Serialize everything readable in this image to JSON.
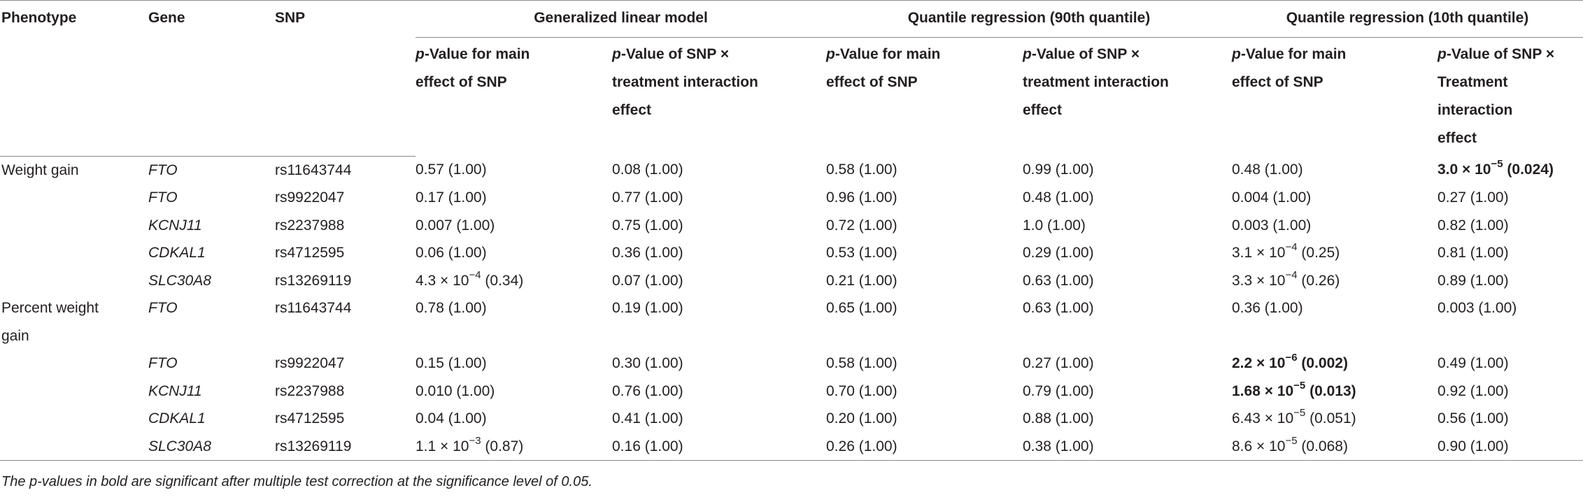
{
  "header": {
    "phenotype": "Phenotype",
    "gene": "Gene",
    "snp": "SNP",
    "groups": [
      "Generalized linear model",
      "Quantile regression (90th quantile)",
      "Quantile regression (10th quantile)"
    ],
    "sub": {
      "glm_main": {
        "p": "p",
        "rest": "-Value for main effect of SNP"
      },
      "glm_int": {
        "p": "p",
        "rest": "-Value of SNP × treatment interaction effect"
      },
      "q90_main": {
        "p": "p",
        "rest": "-Value for main effect of SNP"
      },
      "q90_int": {
        "p": "p",
        "rest": "-Value of SNP × treatment interaction effect"
      },
      "q10_main": {
        "p": "p",
        "rest": "-Value for main effect of SNP"
      },
      "q10_int": {
        "p": "p",
        "rest": "-Value of SNP × Treatment interaction effect"
      }
    }
  },
  "rows": [
    {
      "phenotype": "Weight gain",
      "gene": "FTO",
      "snp": "rs11643744",
      "glm_main": {
        "m": "0.57 (1.00)",
        "e": "",
        "s": ""
      },
      "glm_int": {
        "m": "0.08 (1.00)",
        "e": "",
        "s": ""
      },
      "q90_main": {
        "m": "0.58 (1.00)",
        "e": "",
        "s": ""
      },
      "q90_int": {
        "m": "0.99 (1.00)",
        "e": "",
        "s": ""
      },
      "q10_main": {
        "m": "0.48 (1.00)",
        "e": "",
        "s": ""
      },
      "q10_int": {
        "m": "3.0 × 10",
        "e": "−5",
        "s": " (0.024)",
        "bold": true
      }
    },
    {
      "phenotype": "",
      "gene": "FTO",
      "snp": "rs9922047",
      "glm_main": {
        "m": "0.17 (1.00)",
        "e": "",
        "s": ""
      },
      "glm_int": {
        "m": "0.77 (1.00)",
        "e": "",
        "s": ""
      },
      "q90_main": {
        "m": "0.96 (1.00)",
        "e": "",
        "s": ""
      },
      "q90_int": {
        "m": "0.48 (1.00)",
        "e": "",
        "s": ""
      },
      "q10_main": {
        "m": "0.004 (1.00)",
        "e": "",
        "s": ""
      },
      "q10_int": {
        "m": "0.27 (1.00)",
        "e": "",
        "s": ""
      }
    },
    {
      "phenotype": "",
      "gene": "KCNJ11",
      "snp": "rs2237988",
      "glm_main": {
        "m": "0.007 (1.00)",
        "e": "",
        "s": ""
      },
      "glm_int": {
        "m": "0.75 (1.00)",
        "e": "",
        "s": ""
      },
      "q90_main": {
        "m": "0.72 (1.00)",
        "e": "",
        "s": ""
      },
      "q90_int": {
        "m": "1.0 (1.00)",
        "e": "",
        "s": ""
      },
      "q10_main": {
        "m": "0.003 (1.00)",
        "e": "",
        "s": ""
      },
      "q10_int": {
        "m": "0.82 (1.00)",
        "e": "",
        "s": ""
      }
    },
    {
      "phenotype": "",
      "gene": "CDKAL1",
      "snp": "rs4712595",
      "glm_main": {
        "m": "0.06 (1.00)",
        "e": "",
        "s": ""
      },
      "glm_int": {
        "m": "0.36 (1.00)",
        "e": "",
        "s": ""
      },
      "q90_main": {
        "m": "0.53 (1.00)",
        "e": "",
        "s": ""
      },
      "q90_int": {
        "m": "0.29 (1.00)",
        "e": "",
        "s": ""
      },
      "q10_main": {
        "m": "3.1 × 10",
        "e": "−4",
        "s": " (0.25)"
      },
      "q10_int": {
        "m": "0.81 (1.00)",
        "e": "",
        "s": ""
      }
    },
    {
      "phenotype": "",
      "gene": "SLC30A8",
      "snp": "rs13269119",
      "glm_main": {
        "m": "4.3 × 10",
        "e": "−4",
        "s": " (0.34)"
      },
      "glm_int": {
        "m": "0.07 (1.00)",
        "e": "",
        "s": ""
      },
      "q90_main": {
        "m": "0.21 (1.00)",
        "e": "",
        "s": ""
      },
      "q90_int": {
        "m": "0.63 (1.00)",
        "e": "",
        "s": ""
      },
      "q10_main": {
        "m": "3.3 × 10",
        "e": "−4",
        "s": " (0.26)"
      },
      "q10_int": {
        "m": "0.89 (1.00)",
        "e": "",
        "s": ""
      }
    },
    {
      "phenotype": "Percent weight gain",
      "gene": "FTO",
      "snp": "rs11643744",
      "glm_main": {
        "m": "0.78 (1.00)",
        "e": "",
        "s": ""
      },
      "glm_int": {
        "m": "0.19 (1.00)",
        "e": "",
        "s": ""
      },
      "q90_main": {
        "m": "0.65 (1.00)",
        "e": "",
        "s": ""
      },
      "q90_int": {
        "m": "0.63 (1.00)",
        "e": "",
        "s": ""
      },
      "q10_main": {
        "m": "0.36 (1.00)",
        "e": "",
        "s": ""
      },
      "q10_int": {
        "m": "0.003 (1.00)",
        "e": "",
        "s": ""
      }
    },
    {
      "phenotype": "",
      "gene": "FTO",
      "snp": "rs9922047",
      "glm_main": {
        "m": "0.15 (1.00)",
        "e": "",
        "s": ""
      },
      "glm_int": {
        "m": "0.30 (1.00)",
        "e": "",
        "s": ""
      },
      "q90_main": {
        "m": "0.58 (1.00)",
        "e": "",
        "s": ""
      },
      "q90_int": {
        "m": "0.27 (1.00)",
        "e": "",
        "s": ""
      },
      "q10_main": {
        "m": "2.2 × 10",
        "e": "−6",
        "s": " (0.002)",
        "bold": true
      },
      "q10_int": {
        "m": "0.49 (1.00)",
        "e": "",
        "s": ""
      }
    },
    {
      "phenotype": "",
      "gene": "KCNJ11",
      "snp": "rs2237988",
      "glm_main": {
        "m": "0.010 (1.00)",
        "e": "",
        "s": ""
      },
      "glm_int": {
        "m": "0.76 (1.00)",
        "e": "",
        "s": ""
      },
      "q90_main": {
        "m": "0.70 (1.00)",
        "e": "",
        "s": ""
      },
      "q90_int": {
        "m": "0.79 (1.00)",
        "e": "",
        "s": ""
      },
      "q10_main": {
        "m": "1.68 × 10",
        "e": "−5",
        "s": " (0.013)",
        "bold": true
      },
      "q10_int": {
        "m": "0.92 (1.00)",
        "e": "",
        "s": ""
      }
    },
    {
      "phenotype": "",
      "gene": "CDKAL1",
      "snp": "rs4712595",
      "glm_main": {
        "m": "0.04 (1.00)",
        "e": "",
        "s": ""
      },
      "glm_int": {
        "m": "0.41 (1.00)",
        "e": "",
        "s": ""
      },
      "q90_main": {
        "m": "0.20 (1.00)",
        "e": "",
        "s": ""
      },
      "q90_int": {
        "m": "0.88 (1.00)",
        "e": "",
        "s": ""
      },
      "q10_main": {
        "m": "6.43 × 10",
        "e": "−5",
        "s": " (0.051)"
      },
      "q10_int": {
        "m": "0.56 (1.00)",
        "e": "",
        "s": ""
      }
    },
    {
      "phenotype": "",
      "gene": "SLC30A8",
      "snp": "rs13269119",
      "glm_main": {
        "m": "1.1 × 10",
        "e": "−3",
        "s": " (0.87)"
      },
      "glm_int": {
        "m": "0.16 (1.00)",
        "e": "",
        "s": ""
      },
      "q90_main": {
        "m": "0.26 (1.00)",
        "e": "",
        "s": ""
      },
      "q90_int": {
        "m": "0.38 (1.00)",
        "e": "",
        "s": ""
      },
      "q10_main": {
        "m": "8.6 × 10",
        "e": "−5",
        "s": " (0.068)"
      },
      "q10_int": {
        "m": "0.90 (1.00)",
        "e": "",
        "s": ""
      }
    }
  ],
  "footnote": "The p-values in bold are significant after multiple test correction at the significance level of 0.05."
}
